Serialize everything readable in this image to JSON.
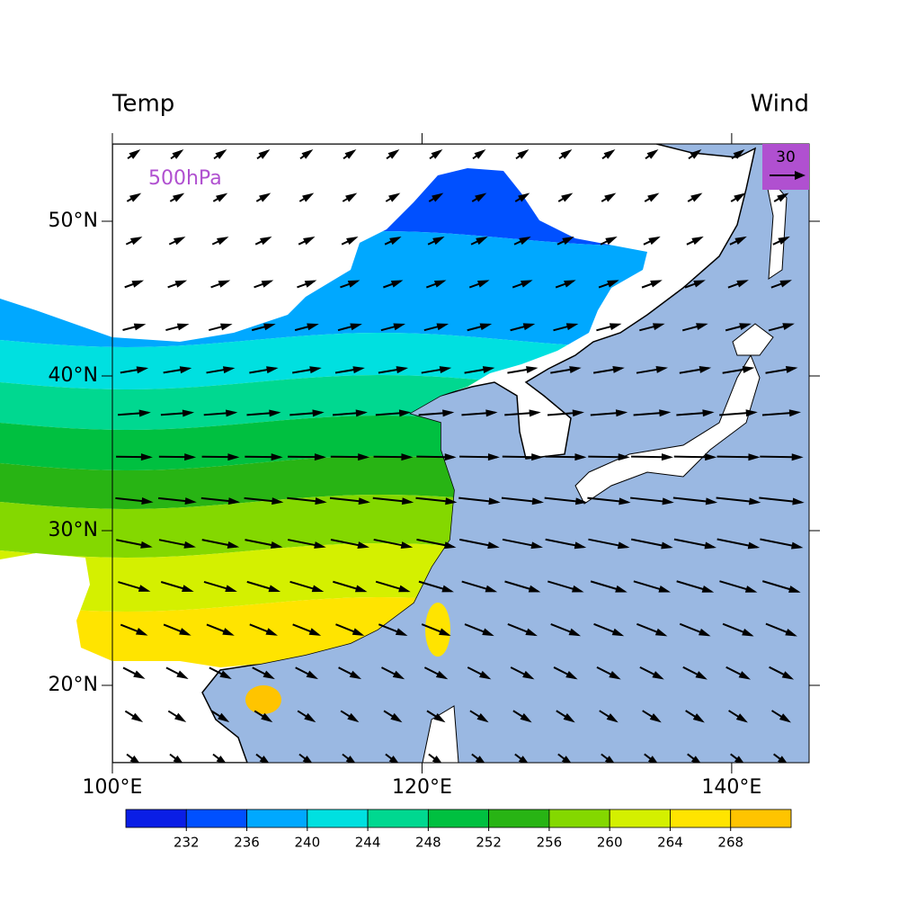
{
  "header": {
    "left_title": "Temp",
    "right_title": "Wind"
  },
  "map": {
    "level_label": "500hPa",
    "reference_vector": 30,
    "xlim": [
      100,
      145
    ],
    "ylim": [
      15,
      55
    ],
    "xticks": [
      {
        "value": 100,
        "label": "100°E"
      },
      {
        "value": 120,
        "label": "120°E"
      },
      {
        "value": 140,
        "label": "140°E"
      }
    ],
    "yticks": [
      {
        "value": 20,
        "label": "20°N"
      },
      {
        "value": 30,
        "label": "30°N"
      },
      {
        "value": 40,
        "label": "40°N"
      },
      {
        "value": 50,
        "label": "50°N"
      }
    ]
  },
  "colorbar": {
    "levels": [
      232,
      236,
      240,
      244,
      248,
      252,
      256,
      260,
      264,
      268
    ],
    "colors": [
      "#0a1ee6",
      "#0050ff",
      "#00a8ff",
      "#00e0e0",
      "#00d890",
      "#00c040",
      "#28b414",
      "#84d800",
      "#d4f000",
      "#ffe400",
      "#ffc400"
    ]
  }
}
